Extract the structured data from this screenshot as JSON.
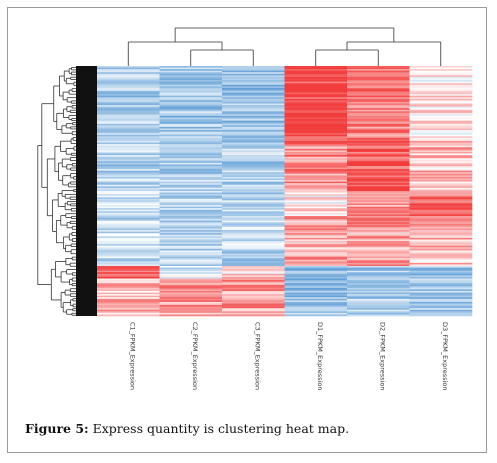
{
  "figure": {
    "caption_prefix": "Figure 5:",
    "caption_text": " Express quantity is clustering heat map."
  },
  "chart_data": {
    "type": "heatmap",
    "title": "",
    "columns": [
      "C1_FPKM_Expression",
      "C2_FPKM_Expression",
      "C3_FPKM_Expression",
      "D1_FPKM_Expression",
      "D2_FPKM_Expression",
      "D3_FPKM_Expression"
    ],
    "column_dendrogram": {
      "left_cluster": [
        "C1_FPKM_Expression",
        "C2_FPKM_Expression",
        "C3_FPKM_Expression"
      ],
      "right_cluster": [
        "D1_FPKM_Expression",
        "D2_FPKM_Expression",
        "D3_FPKM_Expression"
      ]
    },
    "row_dendrogram": true,
    "color_scale": {
      "low": "#5b9bd5",
      "mid": "#ffffff",
      "high": "#f23d3d"
    },
    "row_blocks": [
      {
        "rows": 0.3,
        "values": [
          -0.5,
          -0.55,
          -0.6,
          1.0,
          0.7,
          0.1
        ]
      },
      {
        "rows": 0.2,
        "values": [
          -0.45,
          -0.5,
          -0.5,
          0.6,
          0.9,
          0.35
        ]
      },
      {
        "rows": 0.1,
        "values": [
          -0.3,
          -0.4,
          -0.4,
          0.1,
          0.5,
          0.8
        ]
      },
      {
        "rows": 0.2,
        "values": [
          -0.35,
          -0.4,
          -0.4,
          0.45,
          0.5,
          0.35
        ]
      },
      {
        "rows": 0.05,
        "values": [
          0.9,
          -0.2,
          0.2,
          -0.6,
          -0.5,
          -0.55
        ]
      },
      {
        "rows": 0.15,
        "values": [
          0.35,
          0.5,
          0.5,
          -0.6,
          -0.5,
          -0.55
        ]
      }
    ]
  }
}
